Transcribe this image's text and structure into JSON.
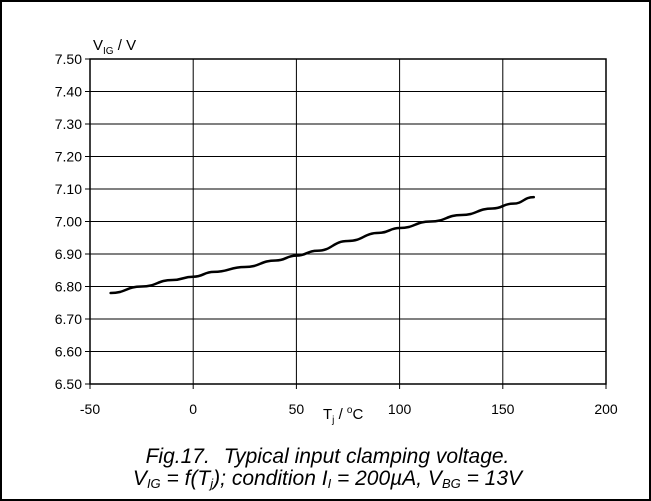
{
  "chart_data": {
    "type": "line",
    "ylabel": {
      "base": "V",
      "sub": "IG",
      "unit": " / V"
    },
    "xlabel": {
      "base": "T",
      "sub": "j",
      "sep": " / ",
      "sup": "o",
      "unit": "C"
    },
    "xlim": [
      -50,
      200
    ],
    "ylim": [
      6.5,
      7.5
    ],
    "x_ticks": [
      "-50",
      "0",
      "50",
      "100",
      "150",
      "200"
    ],
    "y_ticks": [
      "6.50",
      "6.60",
      "6.70",
      "6.80",
      "6.90",
      "7.00",
      "7.10",
      "7.20",
      "7.30",
      "7.40",
      "7.50"
    ],
    "grid": true,
    "series": [
      {
        "x": [
          -40,
          -25,
          -10,
          0,
          10,
          25,
          40,
          50,
          60,
          75,
          90,
          100,
          115,
          130,
          145,
          155,
          165
        ],
        "y": [
          6.78,
          6.8,
          6.82,
          6.83,
          6.845,
          6.86,
          6.88,
          6.895,
          6.91,
          6.94,
          6.965,
          6.98,
          7.0,
          7.02,
          7.04,
          7.055,
          7.075
        ]
      }
    ]
  },
  "caption": {
    "fig_label": "Fig.17.",
    "title": "Typical input clamping voltage.",
    "line2_parts": [
      "V",
      "IG",
      " = f(T",
      "j",
      "); condition I",
      "I",
      " = 200µA, V",
      "BG",
      " = 13V"
    ]
  }
}
